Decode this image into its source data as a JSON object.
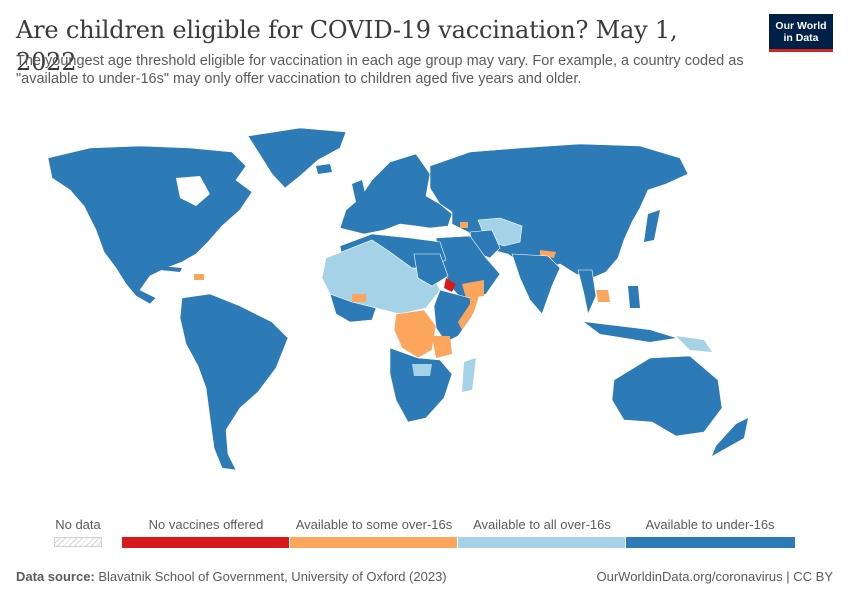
{
  "title": "Are children eligible for COVID-19 vaccination? May 1, 2022",
  "subtitle": "The youngest age threshold eligible for vaccination in each age group may vary. For example, a country coded as \"available to under-16s\" may only offer vaccination to children aged five years and older.",
  "logo": {
    "line1": "Our World",
    "line2": "in Data"
  },
  "colors": {
    "no_vaccines": "#d7191c",
    "some_over16": "#fca55d",
    "all_over16": "#a6d2e7",
    "under16": "#2c7bb6",
    "no_data": "#e0e0e0"
  },
  "legend": {
    "no_data": "No data",
    "items": [
      {
        "label": "No vaccines offered",
        "color": "#d7191c"
      },
      {
        "label": "Available to some over-16s",
        "color": "#fca55d"
      },
      {
        "label": "Available to all over-16s",
        "color": "#a6d2e7"
      },
      {
        "label": "Available to under-16s",
        "color": "#2c7bb6"
      }
    ]
  },
  "footer": {
    "source_label": "Data source:",
    "source_text": "Blavatnik School of Government, University of Oxford (2023)",
    "right": "OurWorldinData.org/coronavirus | CC BY"
  }
}
